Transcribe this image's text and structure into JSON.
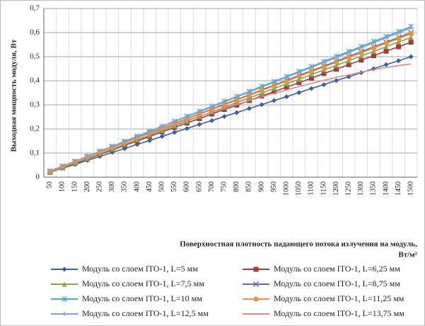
{
  "chart_data": {
    "type": "line",
    "ylabel": "Выходная мощность модуля,  Вт",
    "xlabel_lines": [
      "Поверхностная плотность падающего  потока излучения  на модуль,",
      "Вт/м²"
    ],
    "categories": [
      "50",
      "100",
      "150",
      "200",
      "250",
      "300",
      "350",
      "400",
      "450",
      "500",
      "550",
      "600",
      "650",
      "700",
      "750",
      "800",
      "850",
      "900",
      "950",
      "1000",
      "1050",
      "1100",
      "1150",
      "1200",
      "1250",
      "1300",
      "1350",
      "1400",
      "1450",
      "1500"
    ],
    "ylim": [
      0,
      0.7
    ],
    "yticks": [
      0,
      {
        "value": 0.1,
        "label": "0,1"
      },
      {
        "value": 0.2,
        "label": "0,2"
      },
      {
        "value": 0.3,
        "label": "0,3"
      },
      {
        "value": 0.4,
        "label": "0,4"
      },
      {
        "value": 0.5,
        "label": "0,5"
      },
      {
        "value": 0.6,
        "label": "0,6"
      },
      {
        "value": 0.7,
        "label": "0,7"
      }
    ],
    "grid": true,
    "legend": "bottom",
    "series": [
      {
        "name": "Модуль со слоем ITO-1, L=5 мм",
        "color": "#3a5ea8",
        "marker": "diamond",
        "values": [
          0.02,
          0.037,
          0.053,
          0.07,
          0.086,
          0.103,
          0.119,
          0.136,
          0.152,
          0.169,
          0.186,
          0.202,
          0.219,
          0.235,
          0.252,
          0.268,
          0.285,
          0.301,
          0.318,
          0.334,
          0.351,
          0.368,
          0.384,
          0.401,
          0.417,
          0.434,
          0.45,
          0.467,
          0.483,
          0.5
        ]
      },
      {
        "name": "Модуль со слоем ITO-1, L=6,25 мм",
        "color": "#a83a3c",
        "marker": "square",
        "values": [
          0.02,
          0.039,
          0.057,
          0.076,
          0.094,
          0.113,
          0.132,
          0.15,
          0.169,
          0.188,
          0.206,
          0.225,
          0.243,
          0.262,
          0.281,
          0.299,
          0.318,
          0.337,
          0.355,
          0.374,
          0.392,
          0.411,
          0.43,
          0.448,
          0.467,
          0.486,
          0.504,
          0.523,
          0.541,
          0.56
        ]
      },
      {
        "name": "Модуль со слоем ITO-1, L=7,5 мм",
        "color": "#86a83e",
        "marker": "triangle",
        "values": [
          0.02,
          0.039,
          0.059,
          0.078,
          0.097,
          0.117,
          0.136,
          0.155,
          0.174,
          0.194,
          0.213,
          0.232,
          0.252,
          0.271,
          0.29,
          0.31,
          0.329,
          0.348,
          0.368,
          0.387,
          0.406,
          0.426,
          0.445,
          0.464,
          0.483,
          0.503,
          0.522,
          0.541,
          0.561,
          0.58
        ]
      },
      {
        "name": "Модуль со слоем ITO-1, L=8,75 мм",
        "color": "#7a5ea6",
        "marker": "x",
        "values": [
          0.025,
          0.045,
          0.065,
          0.084,
          0.104,
          0.124,
          0.144,
          0.164,
          0.184,
          0.203,
          0.223,
          0.243,
          0.263,
          0.283,
          0.303,
          0.322,
          0.342,
          0.362,
          0.382,
          0.402,
          0.422,
          0.441,
          0.461,
          0.481,
          0.501,
          0.521,
          0.541,
          0.56,
          0.58,
          0.6
        ]
      },
      {
        "name": "Модуль со слоем ITO-1, L=10 мм",
        "color": "#45b0cf",
        "marker": "star",
        "values": [
          0.025,
          0.046,
          0.066,
          0.087,
          0.108,
          0.128,
          0.149,
          0.17,
          0.191,
          0.211,
          0.232,
          0.253,
          0.273,
          0.294,
          0.315,
          0.335,
          0.356,
          0.377,
          0.397,
          0.418,
          0.439,
          0.459,
          0.48,
          0.501,
          0.522,
          0.542,
          0.563,
          0.584,
          0.604,
          0.625
        ]
      },
      {
        "name": "Модуль со слоем ITO-1, L=11,25 мм",
        "color": "#e8923a",
        "marker": "circle",
        "values": [
          0.025,
          0.045,
          0.064,
          0.084,
          0.104,
          0.123,
          0.143,
          0.163,
          0.182,
          0.202,
          0.222,
          0.241,
          0.261,
          0.281,
          0.3,
          0.32,
          0.339,
          0.359,
          0.379,
          0.398,
          0.418,
          0.438,
          0.457,
          0.477,
          0.497,
          0.516,
          0.536,
          0.556,
          0.575,
          0.595
        ]
      },
      {
        "name": "Модуль со слоем ITO-1, L=12,5 мм",
        "color": "#7e9fd6",
        "marker": "plus",
        "values": [
          0.025,
          0.046,
          0.066,
          0.087,
          0.107,
          0.128,
          0.148,
          0.169,
          0.189,
          0.21,
          0.23,
          0.251,
          0.271,
          0.292,
          0.312,
          0.333,
          0.353,
          0.374,
          0.394,
          0.415,
          0.435,
          0.456,
          0.476,
          0.497,
          0.517,
          0.538,
          0.558,
          0.579,
          0.599,
          0.62
        ]
      },
      {
        "name": "Модуль со слоем ITO-1, L=13,75 мм",
        "color": "#e08a86",
        "marker": "none",
        "values": [
          0.025,
          0.045,
          0.065,
          0.085,
          0.105,
          0.124,
          0.143,
          0.162,
          0.181,
          0.199,
          0.217,
          0.235,
          0.252,
          0.269,
          0.286,
          0.302,
          0.318,
          0.333,
          0.348,
          0.362,
          0.376,
          0.389,
          0.402,
          0.414,
          0.425,
          0.436,
          0.446,
          0.455,
          0.463,
          0.47
        ]
      }
    ]
  }
}
